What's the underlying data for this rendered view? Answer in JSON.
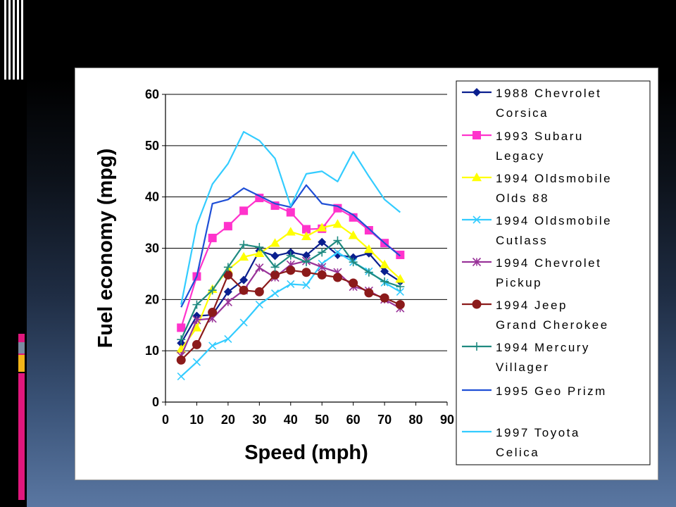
{
  "slide": {
    "background_top": "#000000",
    "background_bottom": "#5a77a2",
    "accent_colors": [
      "#e0177d",
      "#7a8aa0",
      "#f2b51a",
      "#e0177d"
    ]
  },
  "chart_data": {
    "type": "line",
    "xlabel": "Speed (mph)",
    "ylabel": "Fuel economy (mpg)",
    "xlim": [
      0,
      90
    ],
    "ylim": [
      0,
      60
    ],
    "xticks": [
      0,
      10,
      20,
      30,
      40,
      50,
      60,
      70,
      80,
      90
    ],
    "yticks": [
      0,
      10,
      20,
      30,
      40,
      50,
      60
    ],
    "grid": "horizontal",
    "legend_position": "right",
    "series": [
      {
        "name_lines": [
          "1988 Chevrolet",
          "Corsica"
        ],
        "color": "#0a1f8f",
        "marker": "diamond",
        "x": [
          5,
          10,
          15,
          20,
          25,
          30,
          35,
          40,
          45,
          50,
          55,
          60,
          65,
          70,
          75
        ],
        "y": [
          11.5,
          16.8,
          17,
          21.5,
          23.8,
          29.5,
          28.5,
          29.2,
          28.6,
          31.2,
          28.7,
          28.2,
          29,
          25.5,
          23.5
        ]
      },
      {
        "name_lines": [
          "1993 Subaru",
          "Legacy"
        ],
        "color": "#ff33cc",
        "marker": "square",
        "x": [
          5,
          10,
          15,
          20,
          25,
          30,
          35,
          40,
          45,
          50,
          55,
          60,
          65,
          70,
          75
        ],
        "y": [
          14.5,
          24.5,
          32,
          34.3,
          37.3,
          39.8,
          38.3,
          37,
          33.7,
          33.8,
          37.8,
          36,
          33.5,
          31,
          28.7
        ]
      },
      {
        "name_lines": [
          "1994 Oldsmobile",
          "Olds 88"
        ],
        "color": "#ffff00",
        "marker": "triangle",
        "x": [
          5,
          10,
          15,
          20,
          25,
          30,
          35,
          40,
          45,
          50,
          55,
          60,
          65,
          70,
          75
        ],
        "y": [
          10.3,
          14.5,
          22,
          25.8,
          28.3,
          29,
          31,
          33.2,
          32.3,
          34,
          34.7,
          32.5,
          29.8,
          26.8,
          24
        ]
      },
      {
        "name_lines": [
          "1994 Oldsmobile",
          "Cutlass"
        ],
        "color": "#33ccff",
        "marker": "x",
        "x": [
          5,
          10,
          15,
          20,
          25,
          30,
          35,
          40,
          45,
          50,
          55,
          60,
          65,
          70,
          75
        ],
        "y": [
          5,
          7.8,
          11,
          12.3,
          15.5,
          19,
          21.2,
          23,
          22.8,
          27,
          29.2,
          27.3,
          25.5,
          23.3,
          21.5
        ]
      },
      {
        "name_lines": [
          "1994 Chevrolet",
          "Pickup"
        ],
        "color": "#993399",
        "marker": "star",
        "x": [
          5,
          10,
          15,
          20,
          25,
          30,
          35,
          40,
          45,
          50,
          55,
          60,
          65,
          70,
          75
        ],
        "y": [
          9,
          16,
          16.3,
          19.5,
          21.8,
          26.2,
          24.3,
          26.8,
          27.5,
          26.3,
          25.3,
          22.5,
          21.7,
          20,
          18.3
        ]
      },
      {
        "name_lines": [
          "1994 Jeep",
          "Grand Cherokee"
        ],
        "color": "#8b1a1a",
        "marker": "circle",
        "x": [
          5,
          10,
          15,
          20,
          25,
          30,
          35,
          40,
          45,
          50,
          55,
          60,
          65,
          70,
          75
        ],
        "y": [
          8.2,
          11.2,
          17.5,
          24.8,
          21.8,
          21.5,
          24.8,
          25.7,
          25.3,
          24.8,
          24.3,
          23.2,
          21.3,
          20.3,
          19
        ]
      },
      {
        "name_lines": [
          "1994 Mercury",
          "Villager"
        ],
        "color": "#1f8a80",
        "marker": "plus",
        "x": [
          5,
          10,
          15,
          20,
          25,
          30,
          35,
          40,
          45,
          50,
          55,
          60,
          65,
          70,
          75
        ],
        "y": [
          12.2,
          19,
          21.8,
          26.3,
          30.7,
          30.2,
          26.3,
          28.6,
          27.3,
          29.2,
          31.5,
          27.3,
          25.3,
          23.5,
          22.5
        ]
      },
      {
        "name_lines": [
          "1995 Geo Prizm"
        ],
        "color": "#1f4fd6",
        "marker": "none",
        "x": [
          5,
          10,
          15,
          20,
          25,
          30,
          35,
          40,
          45,
          50,
          55,
          60,
          65,
          70,
          75
        ],
        "y": [
          18.5,
          24.5,
          38.7,
          39.5,
          41.7,
          40.2,
          38.7,
          38,
          42.3,
          38.7,
          38.2,
          36.5,
          33.8,
          31,
          28.5
        ]
      },
      {
        "name_lines": [
          "1997 Toyota",
          "Celica"
        ],
        "color": "#33ccff",
        "marker": "none",
        "x": [
          5,
          10,
          15,
          20,
          25,
          30,
          35,
          40,
          45,
          50,
          55,
          60,
          65,
          70,
          75
        ],
        "y": [
          19,
          34.5,
          42.5,
          46.5,
          52.7,
          51,
          47.5,
          38.2,
          44.5,
          45,
          43,
          48.8,
          44,
          39.5,
          37
        ]
      }
    ]
  }
}
